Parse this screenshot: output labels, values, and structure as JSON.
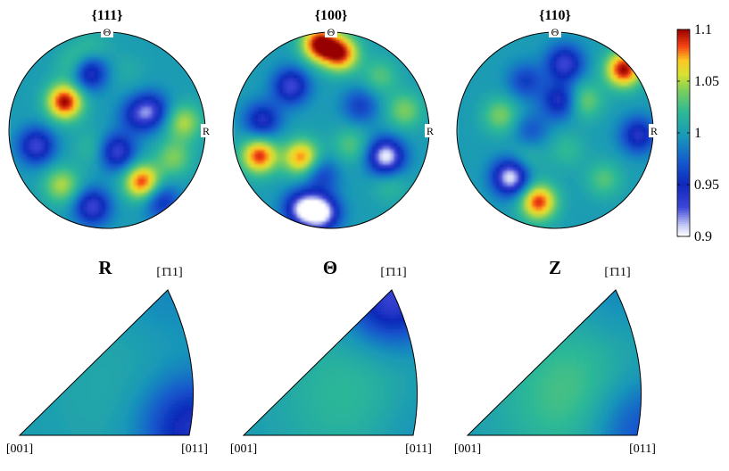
{
  "chart_data": [
    {
      "type": "heatmap",
      "subtype": "pole-figure",
      "title": "{111}",
      "xlabel": "R",
      "ylabel": "Θ",
      "colorscale": "parula",
      "clim": [
        0.9,
        1.1
      ],
      "hotspots": [
        {
          "u": -0.43,
          "v": 0.29,
          "value": 1.1
        },
        {
          "u": 0.36,
          "v": -0.53,
          "value": 1.09
        },
        {
          "u": -0.46,
          "v": -0.56,
          "value": 1.05
        },
        {
          "u": -0.3,
          "v": 0.65,
          "value": 1.05
        },
        {
          "u": 0.78,
          "v": 0.08,
          "value": 1.05
        },
        {
          "u": 0.68,
          "v": -0.28,
          "value": 1.04
        },
        {
          "u": -0.15,
          "v": -0.18,
          "value": 1.02
        },
        {
          "u": 0.2,
          "v": 0.6,
          "value": 1.01
        },
        {
          "u": -0.15,
          "v": 0.82,
          "value": 1.02
        },
        {
          "u": -0.2,
          "v": 0.6,
          "value": 0.91
        },
        {
          "u": -0.72,
          "v": -0.16,
          "value": 0.93
        },
        {
          "u": 0.1,
          "v": -0.22,
          "value": 0.93
        },
        {
          "u": 0.45,
          "v": 0.2,
          "value": 0.94
        },
        {
          "u": -0.15,
          "v": -0.78,
          "value": 0.93
        },
        {
          "u": 0.55,
          "v": -0.72,
          "value": 0.95
        },
        {
          "u": 0.3,
          "v": 0.15,
          "value": 0.96
        }
      ]
    },
    {
      "type": "heatmap",
      "subtype": "pole-figure",
      "title": "{100}",
      "xlabel": "R",
      "ylabel": "Θ",
      "colorscale": "parula",
      "clim": [
        0.9,
        1.1
      ],
      "hotspots": [
        {
          "u": -0.12,
          "v": 0.88,
          "value": 1.1
        },
        {
          "u": 0.1,
          "v": 0.78,
          "value": 1.09
        },
        {
          "u": -0.73,
          "v": -0.26,
          "value": 1.09
        },
        {
          "u": -0.3,
          "v": -0.28,
          "value": 1.08
        },
        {
          "u": 0.75,
          "v": 0.2,
          "value": 1.04
        },
        {
          "u": 0.2,
          "v": -0.15,
          "value": 1.03
        },
        {
          "u": 0.5,
          "v": 0.55,
          "value": 1.03
        },
        {
          "u": 0.6,
          "v": -0.55,
          "value": 1.02
        },
        {
          "u": -0.35,
          "v": 0.45,
          "value": 1.01
        },
        {
          "u": 0.56,
          "v": -0.27,
          "value": 0.9
        },
        {
          "u": -0.1,
          "v": -0.84,
          "value": 0.9
        },
        {
          "u": -0.3,
          "v": -0.8,
          "value": 0.92
        },
        {
          "u": -0.4,
          "v": 0.45,
          "value": 0.92
        },
        {
          "u": -0.7,
          "v": 0.1,
          "value": 0.94
        },
        {
          "u": 0.3,
          "v": 0.25,
          "value": 0.96
        },
        {
          "u": -0.1,
          "v": -0.45,
          "value": 0.96
        }
      ]
    },
    {
      "type": "heatmap",
      "subtype": "pole-figure",
      "title": "{110}",
      "xlabel": "R",
      "ylabel": "Θ",
      "colorscale": "parula",
      "clim": [
        0.9,
        1.1
      ],
      "hotspots": [
        {
          "u": 0.7,
          "v": 0.62,
          "value": 1.1
        },
        {
          "u": -0.17,
          "v": -0.73,
          "value": 1.09
        },
        {
          "u": -0.55,
          "v": 0.15,
          "value": 1.04
        },
        {
          "u": 0.3,
          "v": 0.3,
          "value": 1.04
        },
        {
          "u": 0.5,
          "v": -0.5,
          "value": 1.03
        },
        {
          "u": 0.12,
          "v": -0.2,
          "value": 1.02
        },
        {
          "u": -0.3,
          "v": -0.3,
          "value": 1.02
        },
        {
          "u": 0.1,
          "v": 0.68,
          "value": 0.93
        },
        {
          "u": -0.45,
          "v": -0.48,
          "value": 0.9
        },
        {
          "u": 0.85,
          "v": -0.05,
          "value": 0.94
        },
        {
          "u": 0.05,
          "v": 0.3,
          "value": 0.94
        },
        {
          "u": -0.3,
          "v": 0.5,
          "value": 0.96
        },
        {
          "u": -0.25,
          "v": 0.0,
          "value": 0.97
        }
      ]
    },
    {
      "type": "heatmap",
      "subtype": "inverse-pole-figure",
      "title": "R",
      "corner_labels": [
        "[001]",
        "[011]",
        "[1̄11]"
      ],
      "colorscale": "parula",
      "clim": [
        0.9,
        1.1
      ],
      "field": {
        "base": 1.0,
        "at_011": 0.94,
        "at_111": 0.99,
        "center": 1.01
      }
    },
    {
      "type": "heatmap",
      "subtype": "inverse-pole-figure",
      "title": "Θ",
      "corner_labels": [
        "[001]",
        "[011]",
        "[1̄11]"
      ],
      "colorscale": "parula",
      "clim": [
        0.9,
        1.1
      ],
      "field": {
        "base": 1.0,
        "at_011": 0.99,
        "at_111": 0.93,
        "center": 1.02
      }
    },
    {
      "type": "heatmap",
      "subtype": "inverse-pole-figure",
      "title": "Z",
      "corner_labels": [
        "[001]",
        "[011]",
        "[1̄11]"
      ],
      "colorscale": "parula",
      "clim": [
        0.9,
        1.1
      ],
      "field": {
        "base": 1.0,
        "at_011": 0.96,
        "at_111": 0.99,
        "center": 1.03
      }
    },
    {
      "type": "colorbar",
      "colorscale": "parula",
      "range": [
        0.9,
        1.1
      ],
      "ticks": [
        "1.1",
        "1.05",
        "1",
        "0.95",
        "0.9"
      ],
      "tick_values": [
        1.1,
        1.05,
        1.0,
        0.95,
        0.9
      ]
    }
  ]
}
